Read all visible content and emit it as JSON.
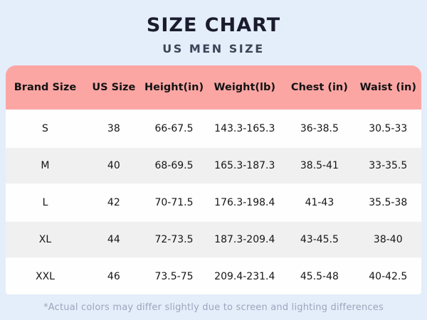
{
  "colors": {
    "background": "#e4eefa",
    "header_pink": "#fca6a4",
    "row_white": "#fefefe",
    "row_alt_gray": "#f0f0f1",
    "title_text": "#1b1b2e",
    "subtitle_text": "#3c4456",
    "footnote_text": "#9aa6bc"
  },
  "chart_data": {
    "type": "table",
    "title": "SIZE CHART",
    "subtitle": "US MEN SIZE",
    "columns": [
      "Brand Size",
      "US Size",
      "Height(in)",
      "Weight(lb)",
      "Chest (in)",
      "Waist (in)"
    ],
    "rows": [
      [
        "S",
        "38",
        "66-67.5",
        "143.3-165.3",
        "36-38.5",
        "30.5-33"
      ],
      [
        "M",
        "40",
        "68-69.5",
        "165.3-187.3",
        "38.5-41",
        "33-35.5"
      ],
      [
        "L",
        "42",
        "70-71.5",
        "176.3-198.4",
        "41-43",
        "35.5-38"
      ],
      [
        "XL",
        "44",
        "72-73.5",
        "187.3-209.4",
        "43-45.5",
        "38-40"
      ],
      [
        "XXL",
        "46",
        "73.5-75",
        "209.4-231.4",
        "45.5-48",
        "40-42.5"
      ]
    ],
    "footnote": "*Actual colors may differ slightly due to screen and lighting differences"
  }
}
